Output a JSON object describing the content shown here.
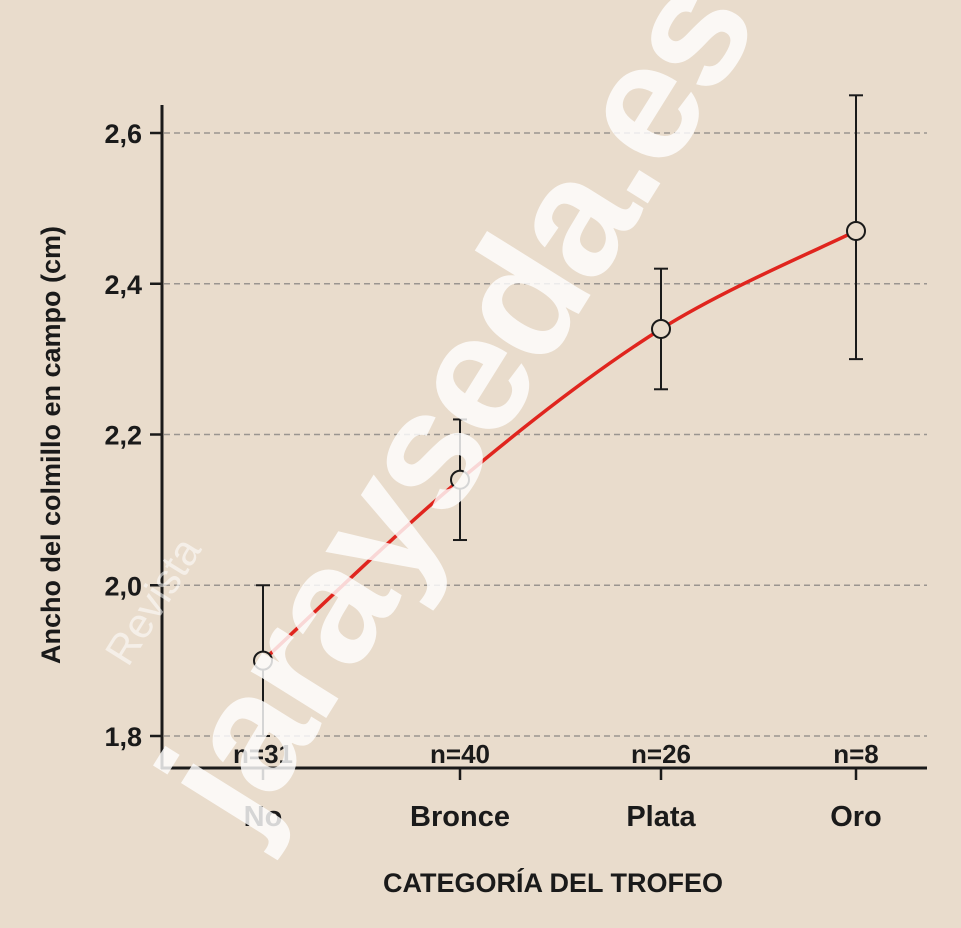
{
  "chart_data": {
    "type": "line",
    "xlabel": "CATEGORÍA DEL TROFEO",
    "ylabel": "Ancho del colmillo en campo (cm)",
    "categories": [
      "No",
      "Bronce",
      "Plata",
      "Oro"
    ],
    "values": [
      1.9,
      2.14,
      2.34,
      2.47
    ],
    "error_low": [
      1.8,
      2.06,
      2.26,
      2.3
    ],
    "error_high": [
      2.0,
      2.22,
      2.42,
      2.65
    ],
    "n_labels": [
      "n=31",
      "n=40",
      "n=26",
      "n=8"
    ],
    "ylim": [
      1.8,
      2.6
    ],
    "yticks": [
      1.8,
      2.0,
      2.2,
      2.4,
      2.6
    ],
    "ytick_labels": [
      "1,8",
      "2,0",
      "2,2",
      "2,4",
      "2,6"
    ],
    "grid": true,
    "colors": {
      "line": "#e0251e",
      "background": "#e9dccc",
      "grid": "#9a9590",
      "axis": "#1a1a1a"
    }
  },
  "watermark": {
    "main": "jarayseda.es",
    "small": "Revista"
  }
}
